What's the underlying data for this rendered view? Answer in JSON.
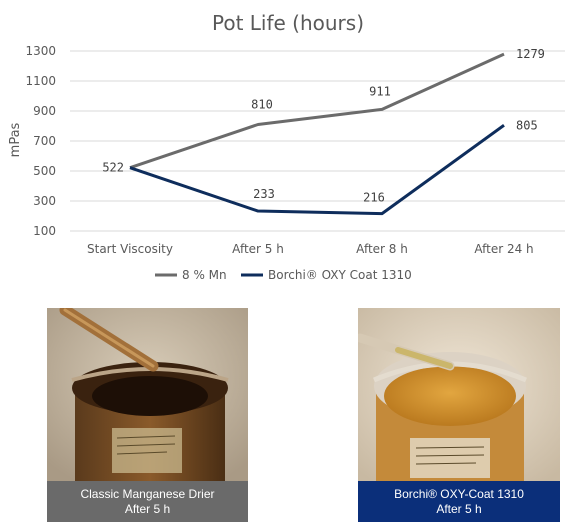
{
  "chart_data": {
    "type": "line",
    "title": "Pot Life (hours)",
    "ylabel": "mPas",
    "xlabel": "",
    "categories": [
      "Start Viscosity",
      "After 5 h",
      "After 8 h",
      "After 24 h"
    ],
    "yticks": [
      100,
      300,
      500,
      700,
      900,
      1100,
      1300
    ],
    "ylim": [
      100,
      1300
    ],
    "grid": true,
    "legend": "bottom",
    "series": [
      {
        "name": "8 % Mn",
        "values": [
          522,
          810,
          911,
          1279
        ],
        "labels": [
          "522",
          "810",
          "911",
          "1279"
        ],
        "color": "#6b6b6b"
      },
      {
        "name": "Borchi® OXY Coat 1310",
        "values": [
          522,
          233,
          216,
          805
        ],
        "labels": [
          "",
          "233",
          "216",
          "805"
        ],
        "color": "#0e2d5c"
      }
    ]
  },
  "photos": {
    "left": {
      "caption_line1": "Classic Manganese Drier",
      "caption_line2": "After 5 h",
      "caption_color": "#6a6a6a"
    },
    "right": {
      "caption_line1": "Borchi® OXY-Coat 1310",
      "caption_line2": "After 5 h",
      "caption_color": "#0b2f7a"
    }
  }
}
